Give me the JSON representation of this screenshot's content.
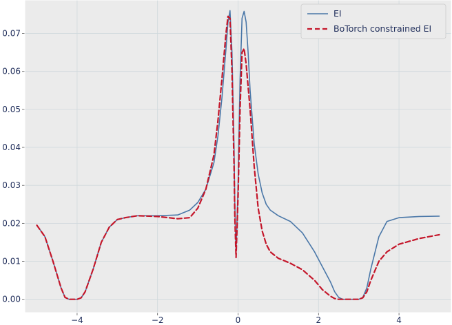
{
  "chart_data": {
    "type": "line",
    "title": "",
    "xlabel": "",
    "ylabel": "",
    "xlim": [
      -5.3,
      5.3
    ],
    "ylim": [
      -0.0035,
      0.0788
    ],
    "xticks": [
      -4,
      -2,
      0,
      2,
      4
    ],
    "xtick_labels": [
      "−4",
      "−2",
      "0",
      "2",
      "4"
    ],
    "yticks": [
      0.0,
      0.01,
      0.02,
      0.03,
      0.04,
      0.05,
      0.06,
      0.07
    ],
    "ytick_labels": [
      "0.00",
      "0.01",
      "0.02",
      "0.03",
      "0.04",
      "0.05",
      "0.06",
      "0.07"
    ],
    "grid": true,
    "legend": {
      "placement": "top-right"
    },
    "series": [
      {
        "name": "EI",
        "color": "#4a77a8",
        "style": "solid",
        "x": [
          -5.0,
          -4.8,
          -4.6,
          -4.4,
          -4.3,
          -4.2,
          -4.0,
          -3.9,
          -3.8,
          -3.6,
          -3.4,
          -3.2,
          -3.0,
          -2.8,
          -2.5,
          -2.0,
          -1.5,
          -1.2,
          -1.0,
          -0.8,
          -0.6,
          -0.5,
          -0.4,
          -0.3,
          -0.25,
          -0.2,
          -0.15,
          -0.1,
          -0.08,
          -0.05,
          0.0,
          0.05,
          0.1,
          0.15,
          0.2,
          0.25,
          0.3,
          0.4,
          0.5,
          0.6,
          0.7,
          0.8,
          1.0,
          1.3,
          1.6,
          1.9,
          2.1,
          2.3,
          2.4,
          2.5,
          2.6,
          2.7,
          3.0,
          3.1,
          3.2,
          3.3,
          3.5,
          3.7,
          4.0,
          4.5,
          5.0
        ],
        "y": [
          0.0195,
          0.0165,
          0.01,
          0.003,
          0.0005,
          0.0,
          0.0,
          0.0004,
          0.002,
          0.008,
          0.015,
          0.019,
          0.021,
          0.0215,
          0.022,
          0.022,
          0.0222,
          0.0235,
          0.0255,
          0.029,
          0.036,
          0.043,
          0.053,
          0.066,
          0.073,
          0.076,
          0.065,
          0.04,
          0.025,
          0.012,
          0.03,
          0.058,
          0.074,
          0.0758,
          0.073,
          0.065,
          0.055,
          0.041,
          0.033,
          0.028,
          0.025,
          0.0235,
          0.022,
          0.0205,
          0.0175,
          0.0125,
          0.0085,
          0.0045,
          0.002,
          0.0005,
          0.0,
          0.0,
          0.0,
          0.0005,
          0.003,
          0.008,
          0.0165,
          0.0205,
          0.0215,
          0.0218,
          0.0219
        ]
      },
      {
        "name": "BoTorch constrained EI",
        "color": "#c4162a",
        "style": "dashed",
        "x": [
          -5.0,
          -4.8,
          -4.6,
          -4.4,
          -4.3,
          -4.2,
          -4.0,
          -3.9,
          -3.8,
          -3.6,
          -3.4,
          -3.2,
          -3.0,
          -2.8,
          -2.5,
          -2.0,
          -1.5,
          -1.2,
          -1.0,
          -0.8,
          -0.6,
          -0.5,
          -0.4,
          -0.3,
          -0.25,
          -0.2,
          -0.15,
          -0.1,
          -0.08,
          -0.05,
          0.0,
          0.05,
          0.1,
          0.15,
          0.2,
          0.3,
          0.4,
          0.5,
          0.6,
          0.7,
          0.8,
          1.0,
          1.3,
          1.6,
          1.9,
          2.1,
          2.3,
          2.4,
          2.5,
          2.6,
          2.7,
          3.0,
          3.1,
          3.2,
          3.3,
          3.5,
          3.7,
          4.0,
          4.5,
          5.0
        ],
        "y": [
          0.0195,
          0.0165,
          0.01,
          0.003,
          0.0005,
          0.0,
          0.0,
          0.0004,
          0.002,
          0.008,
          0.015,
          0.019,
          0.021,
          0.0215,
          0.022,
          0.0218,
          0.0212,
          0.0215,
          0.024,
          0.029,
          0.038,
          0.047,
          0.058,
          0.07,
          0.0745,
          0.074,
          0.06,
          0.035,
          0.022,
          0.011,
          0.027,
          0.05,
          0.065,
          0.066,
          0.062,
          0.05,
          0.035,
          0.024,
          0.018,
          0.0145,
          0.0125,
          0.0108,
          0.0095,
          0.0078,
          0.005,
          0.0025,
          0.0008,
          0.0002,
          0.0,
          0.0,
          0.0,
          0.0,
          0.0004,
          0.002,
          0.005,
          0.01,
          0.0125,
          0.0145,
          0.016,
          0.017
        ]
      }
    ]
  }
}
